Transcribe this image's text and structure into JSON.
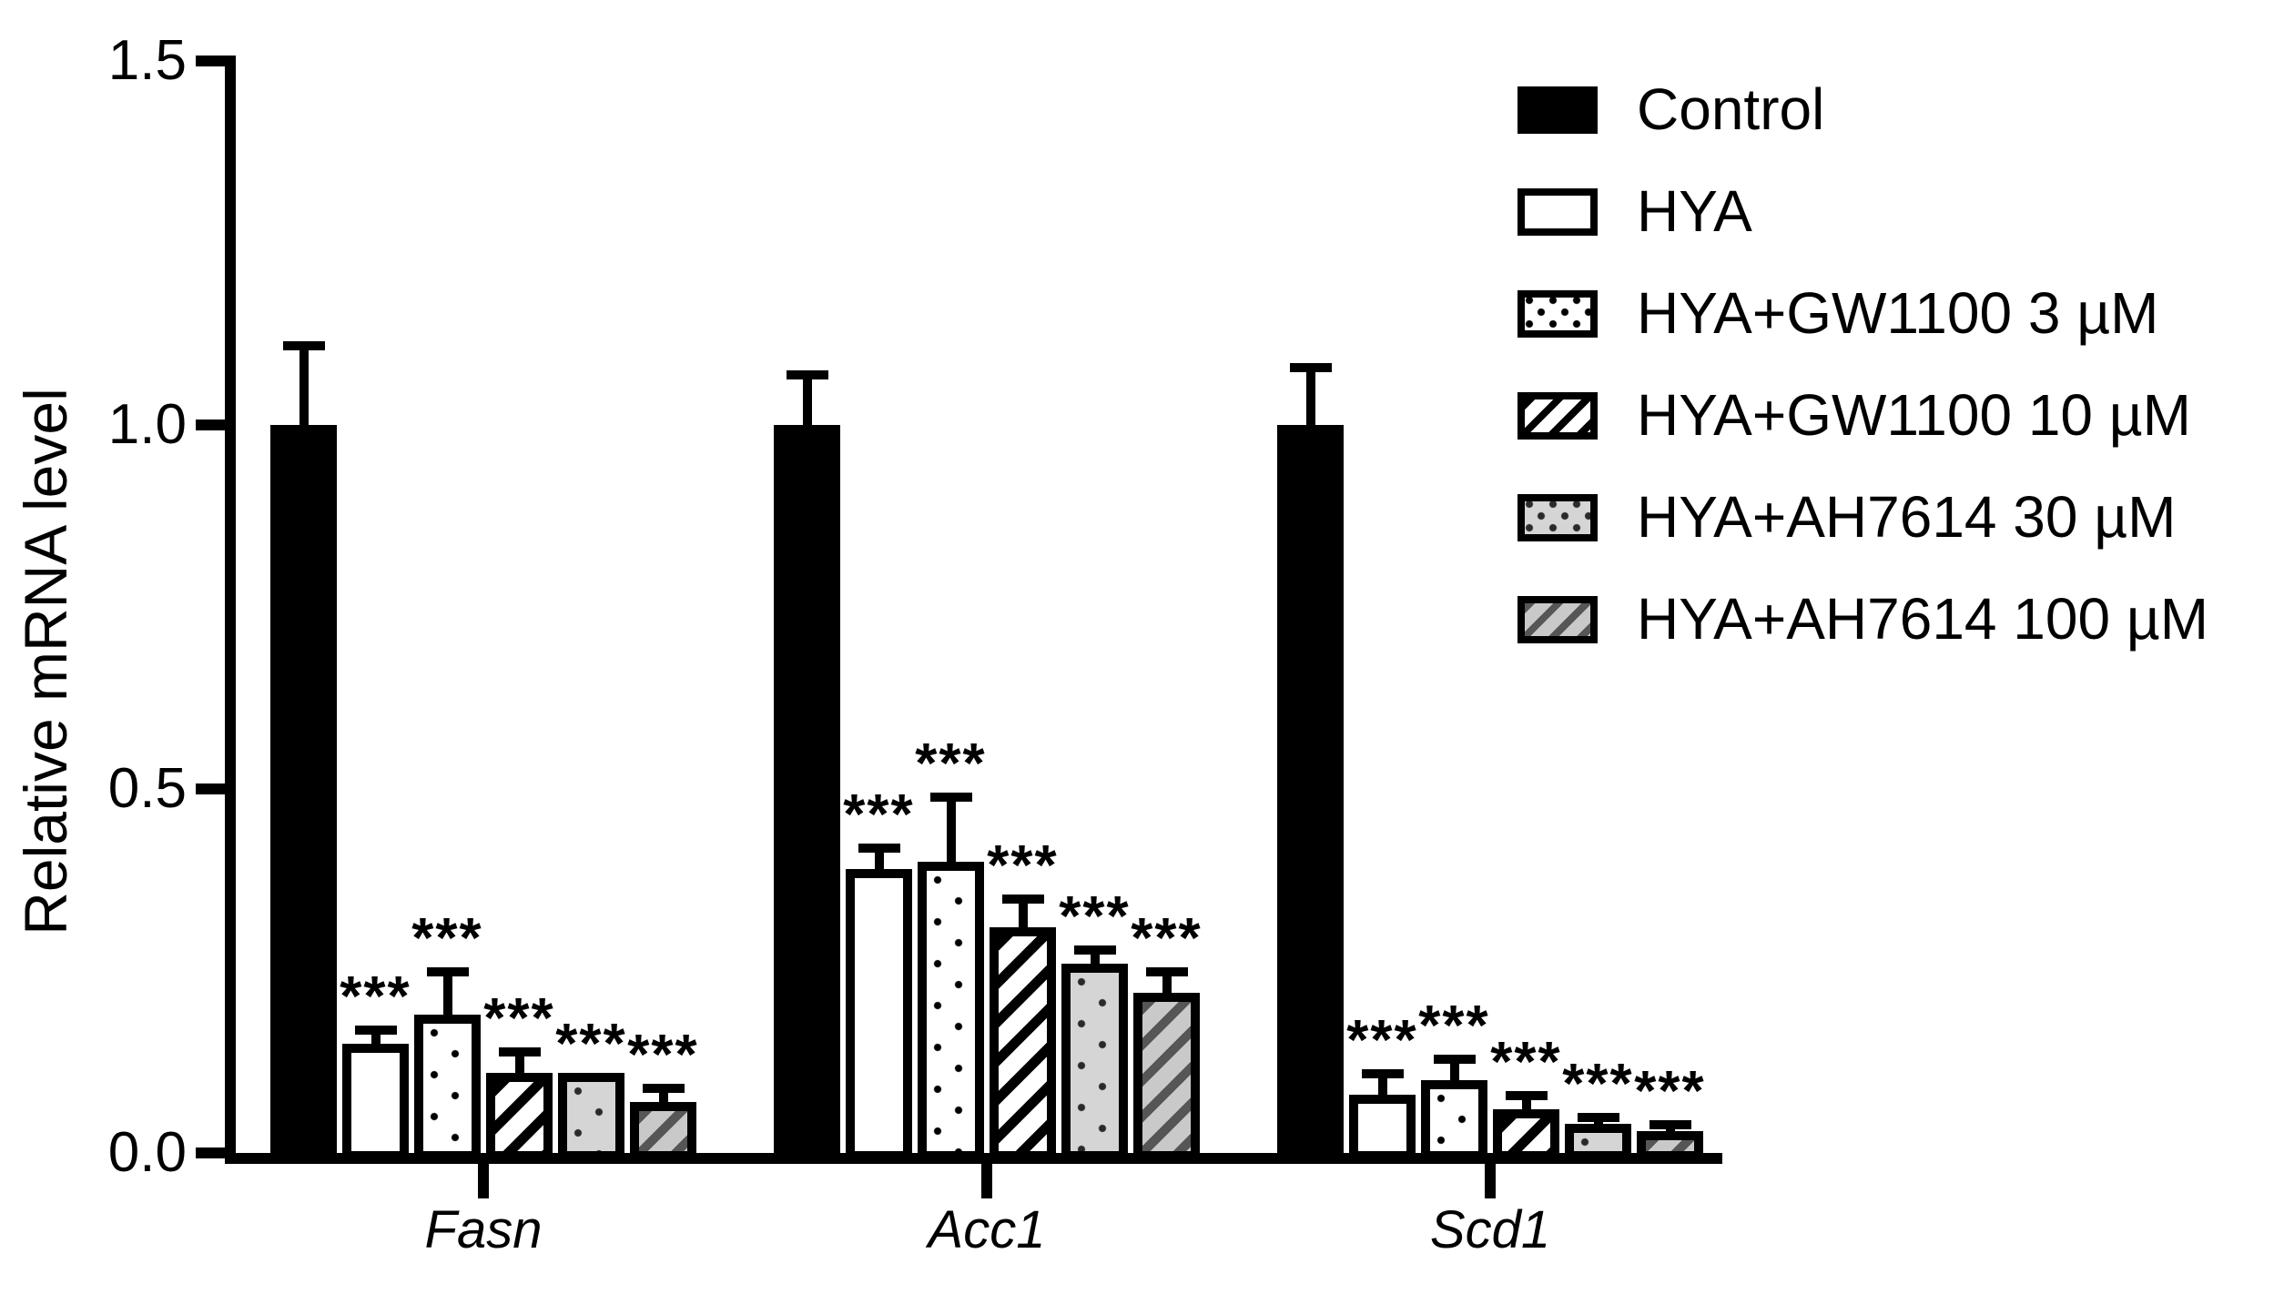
{
  "figure": {
    "background_color": "#ffffff",
    "foreground_color": "#000000",
    "gray_fill_color": "#d5d5d5",
    "y_axis": {
      "title": "Relative mRNA level",
      "tick_labels": [
        "1.5",
        "1.0",
        "0.5",
        "0.0"
      ],
      "tick_values": [
        1.5,
        1.0,
        0.5,
        0.0
      ]
    },
    "x_axis": {
      "categories": [
        "Fasn",
        "Acc1",
        "Scd1"
      ],
      "style": "italic"
    },
    "legend": {
      "position": "top-right",
      "entries": [
        {
          "label": "Control",
          "pattern": "solid-black"
        },
        {
          "label": "HYA",
          "pattern": "open-white"
        },
        {
          "label": "HYA+GW1100 3 µM",
          "pattern": "dots-white"
        },
        {
          "label": "HYA+GW1100 10 µM",
          "pattern": "hatch-white"
        },
        {
          "label": "HYA+AH7614 30 µM",
          "pattern": "dots-gray"
        },
        {
          "label": "HYA+AH7614 100 µM",
          "pattern": "hatch-gray"
        }
      ]
    },
    "significance_marker": "***"
  },
  "chart_data": {
    "type": "bar",
    "title": "",
    "xlabel": "",
    "ylabel": "Relative mRNA level",
    "ylim": [
      0,
      1.5
    ],
    "grid": false,
    "error_bars": true,
    "legend_position": "top-right",
    "categories": [
      "Fasn",
      "Acc1",
      "Scd1"
    ],
    "series": [
      {
        "name": "Control",
        "pattern": "solid-black",
        "values": [
          1.0,
          1.0,
          1.0
        ],
        "errors": [
          0.11,
          0.07,
          0.08
        ],
        "significance": [
          "",
          "",
          ""
        ]
      },
      {
        "name": "HYA",
        "pattern": "open-white",
        "values": [
          0.15,
          0.39,
          0.08
        ],
        "errors": [
          0.02,
          0.03,
          0.03
        ],
        "significance": [
          "***",
          "***",
          "***"
        ]
      },
      {
        "name": "HYA+GW1100 3 µM",
        "pattern": "dots-white",
        "values": [
          0.19,
          0.4,
          0.1
        ],
        "errors": [
          0.06,
          0.09,
          0.03
        ],
        "significance": [
          "***",
          "***",
          "***"
        ]
      },
      {
        "name": "HYA+GW1100 10 µM",
        "pattern": "hatch-white",
        "values": [
          0.11,
          0.31,
          0.06
        ],
        "errors": [
          0.03,
          0.04,
          0.02
        ],
        "significance": [
          "***",
          "***",
          "***"
        ]
      },
      {
        "name": "HYA+AH7614 30 µM",
        "pattern": "dots-gray",
        "values": [
          0.11,
          0.26,
          0.04
        ],
        "errors": [
          0.0,
          0.02,
          0.01
        ],
        "significance": [
          "***",
          "***",
          "***"
        ]
      },
      {
        "name": "HYA+AH7614 100 µM",
        "pattern": "hatch-gray",
        "values": [
          0.07,
          0.22,
          0.03
        ],
        "errors": [
          0.02,
          0.03,
          0.01
        ],
        "significance": [
          "***",
          "***",
          "***"
        ]
      }
    ]
  }
}
